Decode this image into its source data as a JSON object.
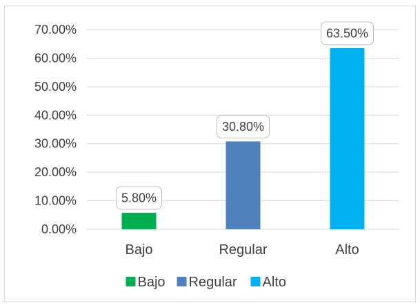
{
  "chart_data": {
    "type": "bar",
    "categories": [
      "Bajo",
      "Regular",
      "Alto"
    ],
    "values": [
      5.8,
      30.8,
      63.5
    ],
    "data_labels": [
      "5.80%",
      "30.80%",
      "63.50%"
    ],
    "colors": [
      "#00b050",
      "#4f81bd",
      "#00b0f0"
    ],
    "ylim": [
      0,
      70
    ],
    "yticks": [
      0,
      10,
      20,
      30,
      40,
      50,
      60,
      70
    ],
    "ytick_labels": [
      "0.00%",
      "10.00%",
      "20.00%",
      "30.00%",
      "40.00%",
      "50.00%",
      "60.00%",
      "70.00%"
    ],
    "grid": true,
    "legend": {
      "position": "bottom",
      "entries": [
        "Bajo",
        "Regular",
        "Alto"
      ]
    },
    "title": "",
    "xlabel": "",
    "ylabel": ""
  }
}
